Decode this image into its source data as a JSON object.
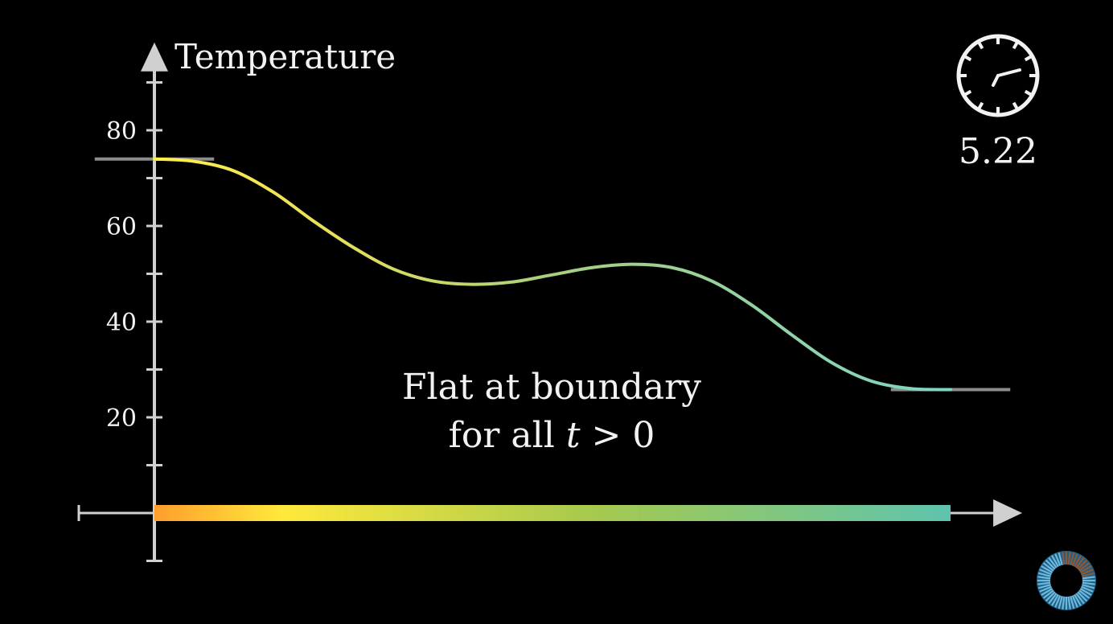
{
  "chart_data": {
    "type": "line",
    "ylabel": "Temperature",
    "xlabel": "",
    "ylim": [
      -10,
      95
    ],
    "xlim": [
      -1,
      10.9
    ],
    "y_ticks": [
      20,
      40,
      60,
      80
    ],
    "y_minor_ticks": [
      -10,
      10,
      30,
      50,
      70,
      90
    ],
    "rod": {
      "x_start": 0,
      "x_end": 10,
      "colors": [
        "#ff9e2c",
        "#ffe93b",
        "#a6c94e",
        "#5ec4ae"
      ]
    },
    "series": [
      {
        "x": [
          0,
          0.5,
          1,
          1.5,
          2,
          2.5,
          3,
          3.5,
          4,
          4.5,
          5,
          5.5,
          6,
          6.5,
          7,
          7.5,
          8,
          8.5,
          9,
          9.5,
          10
        ],
        "y": [
          74,
          73.5,
          71.5,
          67,
          61,
          55.5,
          51,
          48.5,
          47.8,
          48.3,
          49.8,
          51.3,
          52,
          51.3,
          48.5,
          43.5,
          37.3,
          31.5,
          27.6,
          26,
          25.8
        ]
      }
    ],
    "boundary_markers": [
      {
        "x_from": -0.75,
        "x_to": 0.75,
        "y": 74
      },
      {
        "x_from": 9.25,
        "x_to": 10.75,
        "y": 25.8
      }
    ],
    "annotation": [
      "Flat at boundary",
      "for all ",
      "t",
      " > 0"
    ]
  },
  "timer": {
    "value": "5.22",
    "hand_angles_deg": [
      -20,
      200
    ]
  },
  "colors": {
    "axis": "#d0d0d0",
    "background": "#000000",
    "marker": "#8c8c8c",
    "text": "#f2f2f2"
  }
}
